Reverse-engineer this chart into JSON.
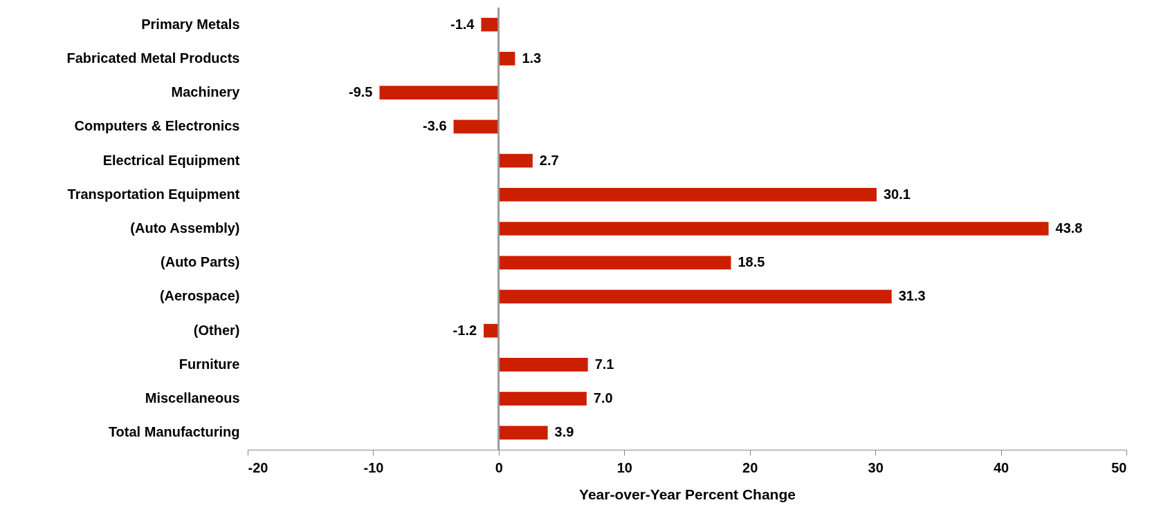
{
  "chart_data": {
    "type": "bar",
    "orientation": "horizontal",
    "xlabel": "Year-over-Year Percent Change",
    "categories": [
      "Primary Metals",
      "Fabricated Metal Products",
      "Machinery",
      "Computers & Electronics",
      "Electrical Equipment",
      "Transportation Equipment",
      "(Auto Assembly)",
      "(Auto Parts)",
      "(Aerospace)",
      "(Other)",
      "Furniture",
      "Miscellaneous",
      "Total Manufacturing"
    ],
    "values": [
      -1.4,
      1.3,
      -9.5,
      -3.6,
      2.7,
      30.1,
      43.8,
      18.5,
      31.3,
      -1.2,
      7.1,
      7.0,
      3.9
    ],
    "value_labels": [
      "-1.4",
      "1.3",
      "-9.5",
      "-3.6",
      "2.7",
      "30.1",
      "43.8",
      "18.5",
      "31.3",
      "-1.2",
      "7.1",
      "7.0",
      "3.9"
    ],
    "color": "#cc1f00",
    "xlim": [
      -20,
      50
    ],
    "xticks": [
      -20,
      -10,
      0,
      10,
      20,
      30,
      40,
      50
    ],
    "tick_labels": [
      "x",
      "y"
    ]
  }
}
